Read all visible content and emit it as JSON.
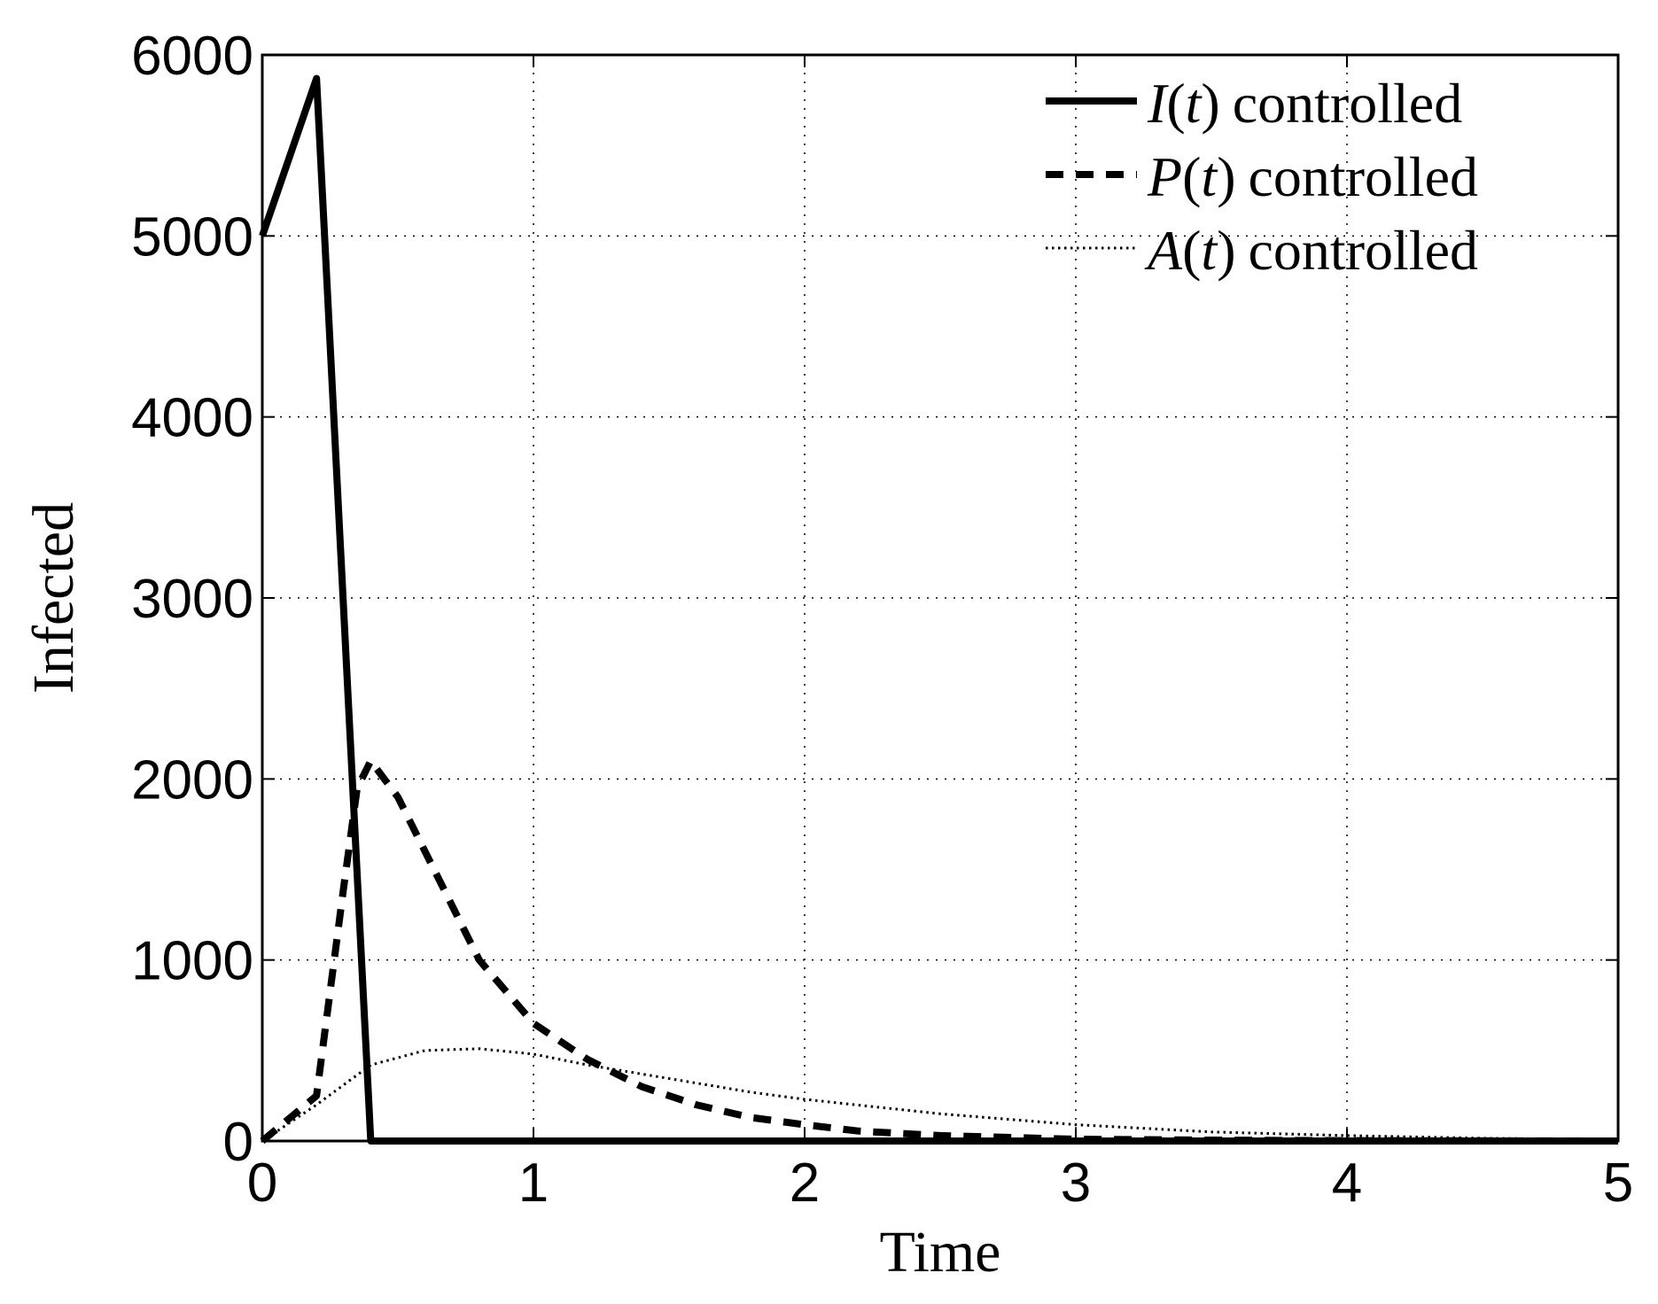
{
  "chart_data": {
    "type": "line",
    "title": "",
    "xlabel": "Time",
    "ylabel": "Infected",
    "xlim": [
      0,
      5
    ],
    "ylim": [
      0,
      6000
    ],
    "x_ticks": [
      0,
      1,
      2,
      3,
      4,
      5
    ],
    "x_tick_labels": [
      "0",
      "1",
      "2",
      "3",
      "4",
      "5"
    ],
    "y_ticks": [
      0,
      1000,
      2000,
      3000,
      4000,
      5000,
      6000
    ],
    "y_tick_labels": [
      "0",
      "1000",
      "2000",
      "3000",
      "4000",
      "5000",
      "6000"
    ],
    "grid": true,
    "legend_position": "top-right",
    "series": [
      {
        "name": "I(t) controlled",
        "legend_symbol": "I",
        "legend_suffix": "controlled",
        "style": "solid",
        "color": "#000000",
        "x": [
          0,
          0.2,
          0.4,
          0.6,
          1,
          2,
          3,
          4,
          5
        ],
        "y": [
          5000,
          5870,
          0,
          0,
          0,
          0,
          0,
          0,
          0
        ]
      },
      {
        "name": "P(t) controlled",
        "legend_symbol": "P",
        "legend_suffix": "controlled",
        "style": "dashed",
        "color": "#000000",
        "x": [
          0,
          0.2,
          0.3,
          0.35,
          0.4,
          0.5,
          0.6,
          0.8,
          1.0,
          1.2,
          1.4,
          1.6,
          1.8,
          2.0,
          2.2,
          2.5,
          3.0,
          3.5,
          4.0,
          5.0
        ],
        "y": [
          0,
          250,
          1400,
          1950,
          2100,
          1900,
          1600,
          1000,
          650,
          450,
          300,
          200,
          130,
          90,
          55,
          30,
          10,
          5,
          2,
          0
        ]
      },
      {
        "name": "A(t) controlled",
        "legend_symbol": "A",
        "legend_suffix": "controlled",
        "style": "dotted",
        "color": "#000000",
        "x": [
          0,
          0.2,
          0.4,
          0.6,
          0.8,
          1.0,
          1.2,
          1.4,
          1.6,
          1.8,
          2.0,
          2.5,
          3.0,
          3.5,
          4.0,
          4.5,
          5.0
        ],
        "y": [
          0,
          200,
          420,
          500,
          510,
          480,
          420,
          370,
          320,
          270,
          230,
          150,
          90,
          50,
          30,
          15,
          8
        ]
      }
    ]
  }
}
